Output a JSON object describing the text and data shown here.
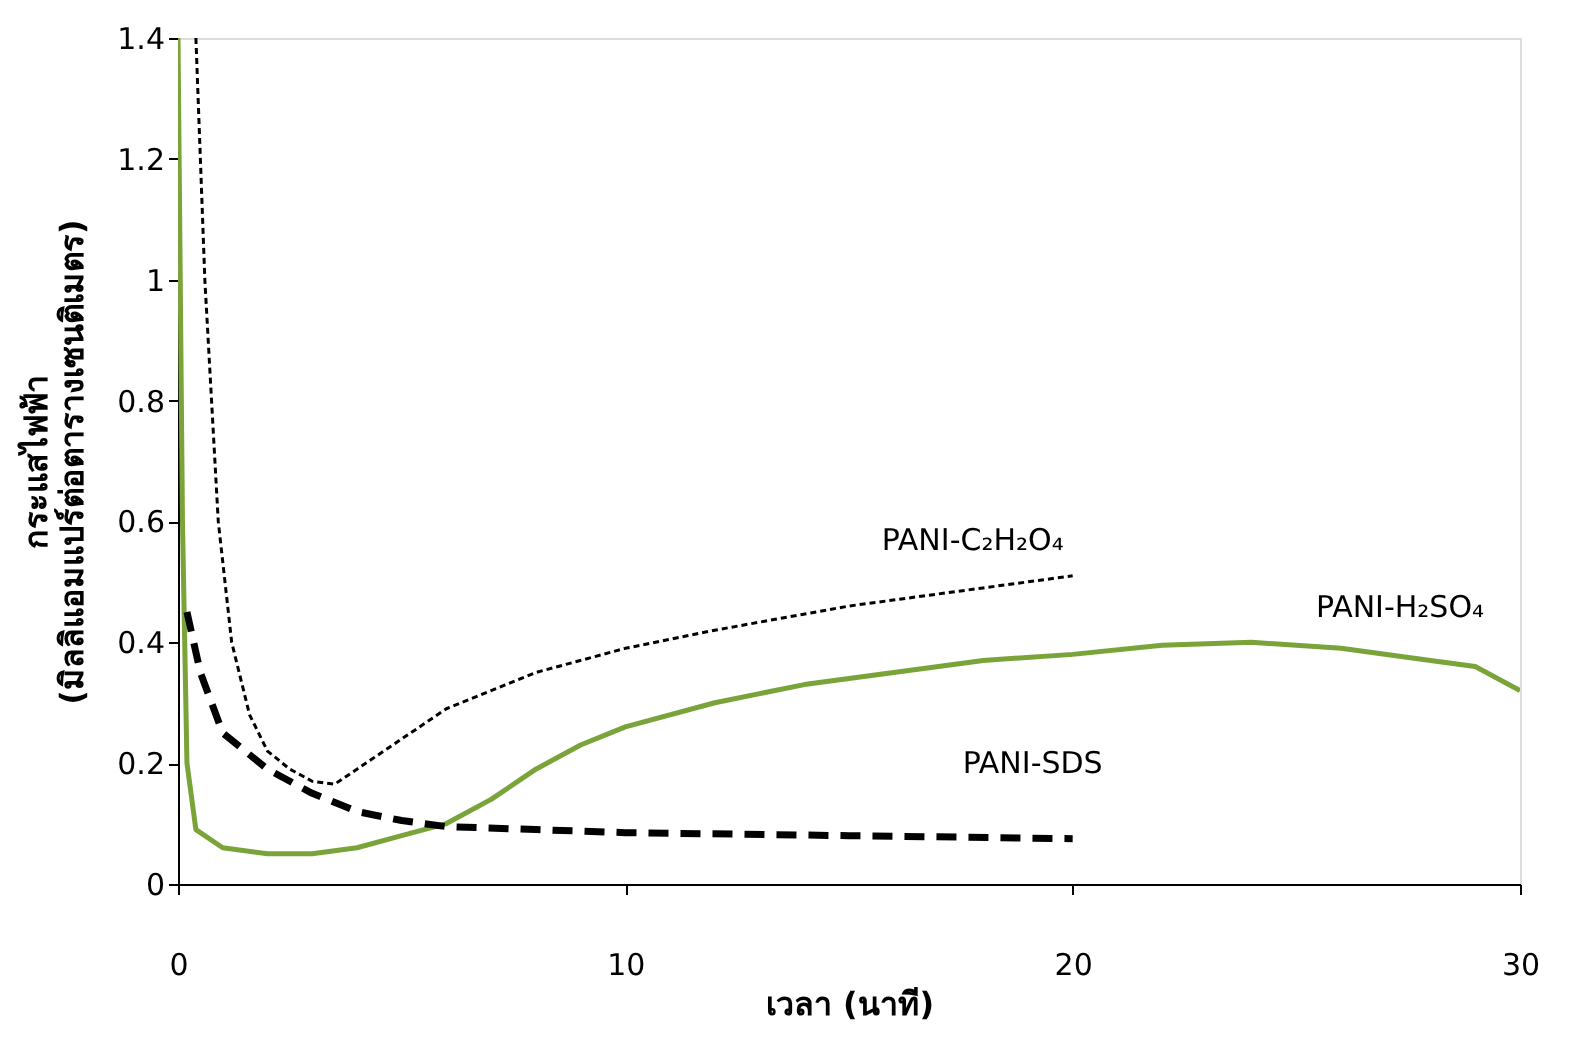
{
  "chart_data": {
    "type": "line",
    "xlabel": "เวลา (นาที)",
    "ylabel": "กระแสไฟฟ้า\n(มิลลิแอมแปร์ต่อตารางเซนติเมตร)",
    "xlim": [
      0,
      30
    ],
    "xticks": [
      0,
      10,
      20,
      30
    ],
    "ylim": [
      0,
      1.4
    ],
    "yticks": [
      0,
      0.2,
      0.4,
      0.6,
      0.8,
      1,
      1.2,
      1.4
    ],
    "grid": false,
    "legend": false,
    "marker": "none",
    "series": [
      {
        "name": "PANI-C₂H₂O₄",
        "color": "#000000",
        "line_style": "dotted",
        "x": [
          0.4,
          0.6,
          0.9,
          1.2,
          1.6,
          2,
          2.5,
          3,
          3.5,
          4,
          5,
          6,
          8,
          10,
          12,
          15,
          18,
          20
        ],
        "values": [
          1.4,
          1.0,
          0.6,
          0.4,
          0.28,
          0.22,
          0.19,
          0.17,
          0.165,
          0.19,
          0.24,
          0.29,
          0.35,
          0.39,
          0.42,
          0.46,
          0.49,
          0.51
        ]
      },
      {
        "name": "PANI-H₂SO₄",
        "color": "#7aa33a",
        "line_style": "solid",
        "x": [
          0,
          0.1,
          0.2,
          0.4,
          1,
          2,
          3,
          4,
          5,
          6,
          7,
          8,
          9,
          10,
          12,
          14,
          16,
          18,
          20,
          22,
          24,
          26,
          28,
          29,
          30
        ],
        "values": [
          1.4,
          0.6,
          0.2,
          0.09,
          0.06,
          0.05,
          0.05,
          0.06,
          0.08,
          0.1,
          0.14,
          0.19,
          0.23,
          0.26,
          0.3,
          0.33,
          0.35,
          0.37,
          0.38,
          0.395,
          0.4,
          0.39,
          0.37,
          0.36,
          0.32
        ]
      },
      {
        "name": "PANI-SDS",
        "color": "#000000",
        "line_style": "dashed",
        "x": [
          0.2,
          0.5,
          1,
          2,
          3,
          4,
          5,
          6,
          8,
          10,
          15,
          20
        ],
        "values": [
          0.45,
          0.35,
          0.25,
          0.19,
          0.15,
          0.12,
          0.105,
          0.095,
          0.09,
          0.085,
          0.08,
          0.075
        ]
      }
    ]
  }
}
